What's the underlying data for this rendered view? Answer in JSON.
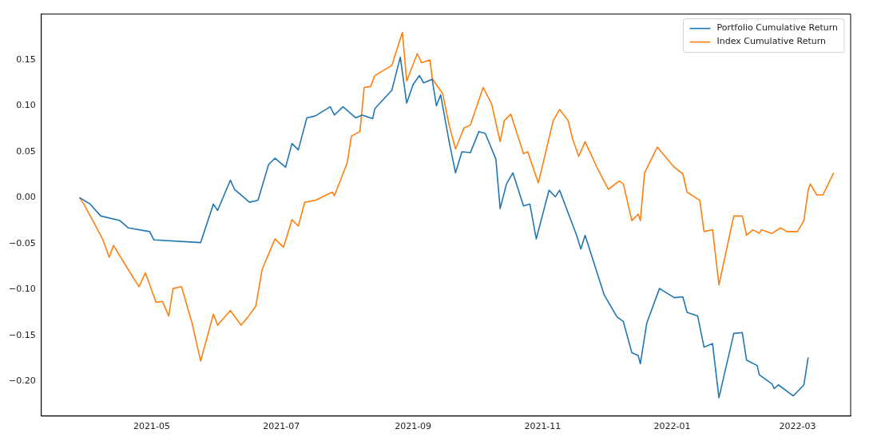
{
  "chart_data": {
    "type": "line",
    "xlim": [
      "2021-03-10",
      "2022-03-26"
    ],
    "xticks": [
      "2021-05",
      "2021-07",
      "2021-09",
      "2021-11",
      "2022-01",
      "2022-03"
    ],
    "ylim": [
      -0.238,
      0.2
    ],
    "yticks": [
      {
        "value": -0.2,
        "label": "−0.20"
      },
      {
        "value": -0.15,
        "label": "−0.15"
      },
      {
        "value": -0.1,
        "label": "−0.10"
      },
      {
        "value": -0.05,
        "label": "−0.05"
      },
      {
        "value": 0,
        "label": "0.00"
      },
      {
        "value": 0.05,
        "label": "0.05"
      },
      {
        "value": 0.1,
        "label": "0.10"
      },
      {
        "value": 0.15,
        "label": "0.15"
      }
    ],
    "grid": false,
    "legend": "top right",
    "series": [
      {
        "name": "Portfolio Cumulative Return",
        "color": "#1f77b4",
        "x": [
          "2021-03-28",
          "2021-04-02",
          "2021-04-07",
          "2021-04-16",
          "2021-04-20",
          "2021-04-30",
          "2021-05-02",
          "2021-05-24",
          "2021-05-30",
          "2021-06-01",
          "2021-06-07",
          "2021-06-09",
          "2021-06-16",
          "2021-06-20",
          "2021-06-25",
          "2021-06-28",
          "2021-07-03",
          "2021-07-06",
          "2021-07-09",
          "2021-07-13",
          "2021-07-17",
          "2021-07-24",
          "2021-07-26",
          "2021-07-30",
          "2021-08-05",
          "2021-08-08",
          "2021-08-13",
          "2021-08-14",
          "2021-08-22",
          "2021-08-26",
          "2021-08-29",
          "2021-09-01",
          "2021-09-04",
          "2021-09-06",
          "2021-09-10",
          "2021-09-12",
          "2021-09-14",
          "2021-09-18",
          "2021-09-21",
          "2021-09-24",
          "2021-09-28",
          "2021-10-02",
          "2021-10-05",
          "2021-10-10",
          "2021-10-12",
          "2021-10-15",
          "2021-10-18",
          "2021-10-23",
          "2021-10-26",
          "2021-10-29",
          "2021-11-04",
          "2021-11-07",
          "2021-11-09",
          "2021-11-17",
          "2021-11-19",
          "2021-11-21",
          "2021-11-30",
          "2021-12-06",
          "2021-12-09",
          "2021-12-13",
          "2021-12-16",
          "2021-12-17",
          "2021-12-20",
          "2021-12-26",
          "2022-01-02",
          "2022-01-06",
          "2022-01-08",
          "2022-01-13",
          "2022-01-16",
          "2022-01-20",
          "2022-01-23",
          "2022-01-30",
          "2022-02-03",
          "2022-02-05",
          "2022-02-10",
          "2022-02-11",
          "2022-02-17",
          "2022-02-18",
          "2022-02-20",
          "2022-02-27",
          "2022-03-04",
          "2022-03-06"
        ],
        "values": [
          0,
          -0.007,
          -0.02,
          -0.025,
          -0.033,
          -0.037,
          -0.046,
          -0.049,
          -0.007,
          -0.014,
          0.019,
          0.009,
          -0.005,
          -0.003,
          0.036,
          0.043,
          0.033,
          0.059,
          0.052,
          0.087,
          0.089,
          0.099,
          0.09,
          0.099,
          0.087,
          0.09,
          0.086,
          0.097,
          0.117,
          0.153,
          0.103,
          0.123,
          0.133,
          0.125,
          0.129,
          0.1,
          0.112,
          0.061,
          0.027,
          0.05,
          0.049,
          0.072,
          0.07,
          0.042,
          -0.012,
          0.015,
          0.027,
          -0.009,
          -0.007,
          -0.045,
          0.008,
          0.001,
          0.008,
          -0.041,
          -0.056,
          -0.041,
          -0.106,
          -0.13,
          -0.135,
          -0.169,
          -0.172,
          -0.181,
          -0.137,
          -0.099,
          -0.109,
          -0.108,
          -0.125,
          -0.129,
          -0.163,
          -0.159,
          -0.218,
          -0.148,
          -0.147,
          -0.177,
          -0.183,
          -0.193,
          -0.203,
          -0.208,
          -0.204,
          -0.216,
          -0.204,
          -0.174
        ]
      },
      {
        "name": "Index Cumulative Return",
        "color": "#ff7f0e",
        "x": [
          "2021-03-28",
          "2021-03-30",
          "2021-04-03",
          "2021-04-08",
          "2021-04-11",
          "2021-04-13",
          "2021-04-19",
          "2021-04-25",
          "2021-04-28",
          "2021-05-03",
          "2021-05-06",
          "2021-05-09",
          "2021-05-11",
          "2021-05-15",
          "2021-05-20",
          "2021-05-24",
          "2021-05-30",
          "2021-06-01",
          "2021-06-07",
          "2021-06-12",
          "2021-06-15",
          "2021-06-19",
          "2021-06-22",
          "2021-06-28",
          "2021-07-02",
          "2021-07-06",
          "2021-07-09",
          "2021-07-12",
          "2021-07-17",
          "2021-07-25",
          "2021-07-26",
          "2021-08-01",
          "2021-08-03",
          "2021-08-07",
          "2021-08-09",
          "2021-08-12",
          "2021-08-14",
          "2021-08-22",
          "2021-08-27",
          "2021-08-29",
          "2021-09-03",
          "2021-09-05",
          "2021-09-09",
          "2021-09-10",
          "2021-09-12",
          "2021-09-15",
          "2021-09-18",
          "2021-09-21",
          "2021-09-25",
          "2021-09-28",
          "2021-10-04",
          "2021-10-08",
          "2021-10-12",
          "2021-10-14",
          "2021-10-17",
          "2021-10-23",
          "2021-10-25",
          "2021-10-30",
          "2021-11-06",
          "2021-11-09",
          "2021-11-13",
          "2021-11-15",
          "2021-11-18",
          "2021-11-21",
          "2021-11-27",
          "2021-12-02",
          "2021-12-07",
          "2021-12-09",
          "2021-12-13",
          "2021-12-16",
          "2021-12-17",
          "2021-12-19",
          "2021-12-25",
          "2022-01-02",
          "2022-01-06",
          "2022-01-08",
          "2022-01-14",
          "2022-01-16",
          "2022-01-20",
          "2022-01-23",
          "2022-01-30",
          "2022-02-03",
          "2022-02-05",
          "2022-02-08",
          "2022-02-11",
          "2022-02-12",
          "2022-02-17",
          "2022-02-21",
          "2022-02-24",
          "2022-03-01",
          "2022-03-04",
          "2022-03-06",
          "2022-03-07",
          "2022-03-10",
          "2022-03-13",
          "2022-03-18"
        ],
        "values": [
          0,
          -0.007,
          -0.024,
          -0.046,
          -0.065,
          -0.052,
          -0.075,
          -0.097,
          -0.082,
          -0.114,
          -0.113,
          -0.129,
          -0.099,
          -0.097,
          -0.137,
          -0.178,
          -0.127,
          -0.139,
          -0.123,
          -0.139,
          -0.131,
          -0.118,
          -0.078,
          -0.045,
          -0.054,
          -0.024,
          -0.031,
          -0.005,
          -0.003,
          0.006,
          0.002,
          0.038,
          0.067,
          0.072,
          0.12,
          0.121,
          0.133,
          0.144,
          0.18,
          0.127,
          0.157,
          0.147,
          0.15,
          0.13,
          0.123,
          0.113,
          0.079,
          0.053,
          0.076,
          0.079,
          0.12,
          0.102,
          0.061,
          0.084,
          0.091,
          0.048,
          0.05,
          0.016,
          0.084,
          0.096,
          0.084,
          0.065,
          0.045,
          0.061,
          0.031,
          0.009,
          0.018,
          0.015,
          -0.025,
          -0.018,
          -0.025,
          0.027,
          0.055,
          0.033,
          0.026,
          0.006,
          -0.003,
          -0.037,
          -0.035,
          -0.095,
          -0.02,
          -0.02,
          -0.041,
          -0.035,
          -0.039,
          -0.035,
          -0.039,
          -0.033,
          -0.037,
          -0.037,
          -0.025,
          0.008,
          0.015,
          0.003,
          0.003,
          0.027
        ]
      }
    ]
  }
}
